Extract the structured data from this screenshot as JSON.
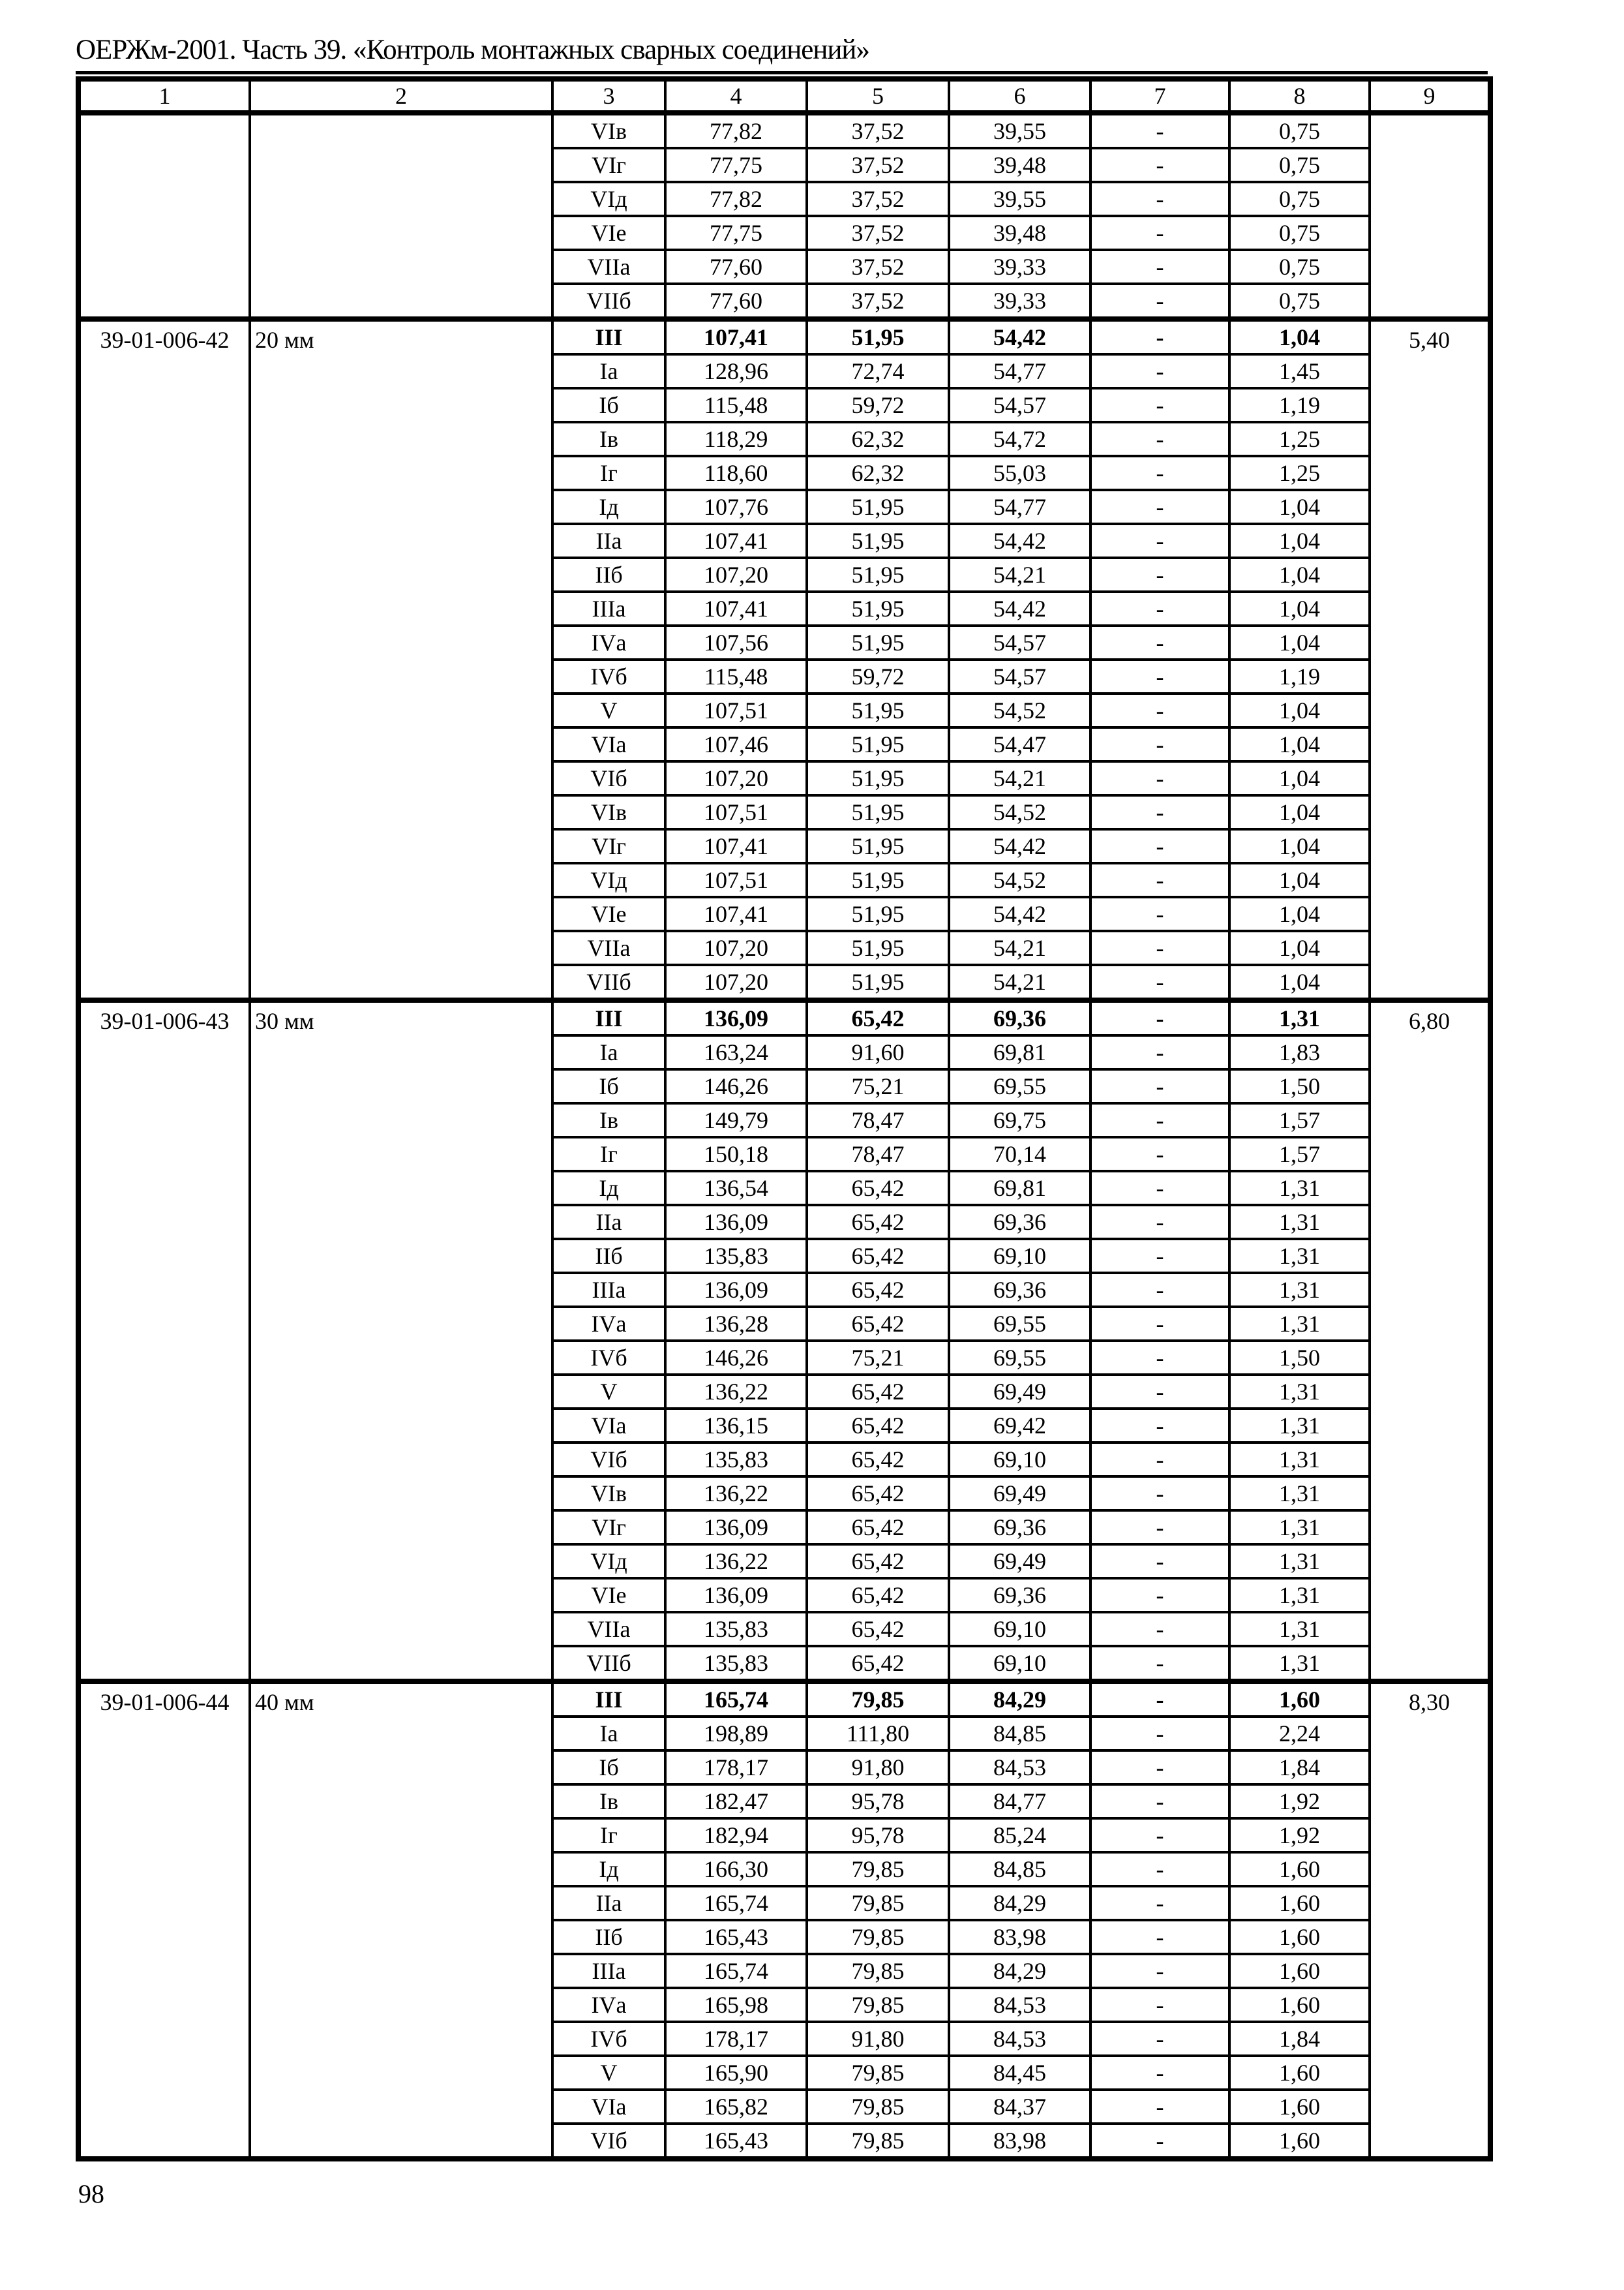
{
  "title": "ОЕРЖм-2001. Часть 39. «Контроль монтажных сварных соединений»",
  "page_number": "98",
  "table": {
    "header": [
      "1",
      "2",
      "3",
      "4",
      "5",
      "6",
      "7",
      "8",
      "9"
    ],
    "groups": [
      {
        "code": "",
        "size": "",
        "col9": "",
        "rows": [
          {
            "idx": "VIв",
            "v4": "77,82",
            "v5": "37,52",
            "v6": "39,55",
            "v7": "-",
            "v8": "0,75"
          },
          {
            "idx": "VIг",
            "v4": "77,75",
            "v5": "37,52",
            "v6": "39,48",
            "v7": "-",
            "v8": "0,75"
          },
          {
            "idx": "VIд",
            "v4": "77,82",
            "v5": "37,52",
            "v6": "39,55",
            "v7": "-",
            "v8": "0,75"
          },
          {
            "idx": "VIе",
            "v4": "77,75",
            "v5": "37,52",
            "v6": "39,48",
            "v7": "-",
            "v8": "0,75"
          },
          {
            "idx": "VIIа",
            "v4": "77,60",
            "v5": "37,52",
            "v6": "39,33",
            "v7": "-",
            "v8": "0,75"
          },
          {
            "idx": "VIIб",
            "v4": "77,60",
            "v5": "37,52",
            "v6": "39,33",
            "v7": "-",
            "v8": "0,75"
          }
        ]
      },
      {
        "code": "39-01-006-42",
        "size": "20 мм",
        "col9": "5,40",
        "rows": [
          {
            "idx": "III",
            "v4": "107,41",
            "v5": "51,95",
            "v6": "54,42",
            "v7": "-",
            "v8": "1,04",
            "bold": true
          },
          {
            "idx": "Iа",
            "v4": "128,96",
            "v5": "72,74",
            "v6": "54,77",
            "v7": "-",
            "v8": "1,45"
          },
          {
            "idx": "Iб",
            "v4": "115,48",
            "v5": "59,72",
            "v6": "54,57",
            "v7": "-",
            "v8": "1,19"
          },
          {
            "idx": "Iв",
            "v4": "118,29",
            "v5": "62,32",
            "v6": "54,72",
            "v7": "-",
            "v8": "1,25"
          },
          {
            "idx": "Iг",
            "v4": "118,60",
            "v5": "62,32",
            "v6": "55,03",
            "v7": "-",
            "v8": "1,25"
          },
          {
            "idx": "Iд",
            "v4": "107,76",
            "v5": "51,95",
            "v6": "54,77",
            "v7": "-",
            "v8": "1,04"
          },
          {
            "idx": "IIа",
            "v4": "107,41",
            "v5": "51,95",
            "v6": "54,42",
            "v7": "-",
            "v8": "1,04"
          },
          {
            "idx": "IIб",
            "v4": "107,20",
            "v5": "51,95",
            "v6": "54,21",
            "v7": "-",
            "v8": "1,04"
          },
          {
            "idx": "IIIа",
            "v4": "107,41",
            "v5": "51,95",
            "v6": "54,42",
            "v7": "-",
            "v8": "1,04"
          },
          {
            "idx": "IVа",
            "v4": "107,56",
            "v5": "51,95",
            "v6": "54,57",
            "v7": "-",
            "v8": "1,04"
          },
          {
            "idx": "IVб",
            "v4": "115,48",
            "v5": "59,72",
            "v6": "54,57",
            "v7": "-",
            "v8": "1,19"
          },
          {
            "idx": "V",
            "v4": "107,51",
            "v5": "51,95",
            "v6": "54,52",
            "v7": "-",
            "v8": "1,04"
          },
          {
            "idx": "VIа",
            "v4": "107,46",
            "v5": "51,95",
            "v6": "54,47",
            "v7": "-",
            "v8": "1,04"
          },
          {
            "idx": "VIб",
            "v4": "107,20",
            "v5": "51,95",
            "v6": "54,21",
            "v7": "-",
            "v8": "1,04"
          },
          {
            "idx": "VIв",
            "v4": "107,51",
            "v5": "51,95",
            "v6": "54,52",
            "v7": "-",
            "v8": "1,04"
          },
          {
            "idx": "VIг",
            "v4": "107,41",
            "v5": "51,95",
            "v6": "54,42",
            "v7": "-",
            "v8": "1,04"
          },
          {
            "idx": "VIд",
            "v4": "107,51",
            "v5": "51,95",
            "v6": "54,52",
            "v7": "-",
            "v8": "1,04"
          },
          {
            "idx": "VIе",
            "v4": "107,41",
            "v5": "51,95",
            "v6": "54,42",
            "v7": "-",
            "v8": "1,04"
          },
          {
            "idx": "VIIа",
            "v4": "107,20",
            "v5": "51,95",
            "v6": "54,21",
            "v7": "-",
            "v8": "1,04"
          },
          {
            "idx": "VIIб",
            "v4": "107,20",
            "v5": "51,95",
            "v6": "54,21",
            "v7": "-",
            "v8": "1,04"
          }
        ]
      },
      {
        "code": "39-01-006-43",
        "size": "30 мм",
        "col9": "6,80",
        "rows": [
          {
            "idx": "III",
            "v4": "136,09",
            "v5": "65,42",
            "v6": "69,36",
            "v7": "-",
            "v8": "1,31",
            "bold": true
          },
          {
            "idx": "Iа",
            "v4": "163,24",
            "v5": "91,60",
            "v6": "69,81",
            "v7": "-",
            "v8": "1,83"
          },
          {
            "idx": "Iб",
            "v4": "146,26",
            "v5": "75,21",
            "v6": "69,55",
            "v7": "-",
            "v8": "1,50"
          },
          {
            "idx": "Iв",
            "v4": "149,79",
            "v5": "78,47",
            "v6": "69,75",
            "v7": "-",
            "v8": "1,57"
          },
          {
            "idx": "Iг",
            "v4": "150,18",
            "v5": "78,47",
            "v6": "70,14",
            "v7": "-",
            "v8": "1,57"
          },
          {
            "idx": "Iд",
            "v4": "136,54",
            "v5": "65,42",
            "v6": "69,81",
            "v7": "-",
            "v8": "1,31"
          },
          {
            "idx": "IIа",
            "v4": "136,09",
            "v5": "65,42",
            "v6": "69,36",
            "v7": "-",
            "v8": "1,31"
          },
          {
            "idx": "IIб",
            "v4": "135,83",
            "v5": "65,42",
            "v6": "69,10",
            "v7": "-",
            "v8": "1,31"
          },
          {
            "idx": "IIIа",
            "v4": "136,09",
            "v5": "65,42",
            "v6": "69,36",
            "v7": "-",
            "v8": "1,31"
          },
          {
            "idx": "IVа",
            "v4": "136,28",
            "v5": "65,42",
            "v6": "69,55",
            "v7": "-",
            "v8": "1,31"
          },
          {
            "idx": "IVб",
            "v4": "146,26",
            "v5": "75,21",
            "v6": "69,55",
            "v7": "-",
            "v8": "1,50"
          },
          {
            "idx": "V",
            "v4": "136,22",
            "v5": "65,42",
            "v6": "69,49",
            "v7": "-",
            "v8": "1,31"
          },
          {
            "idx": "VIа",
            "v4": "136,15",
            "v5": "65,42",
            "v6": "69,42",
            "v7": "-",
            "v8": "1,31"
          },
          {
            "idx": "VIб",
            "v4": "135,83",
            "v5": "65,42",
            "v6": "69,10",
            "v7": "-",
            "v8": "1,31"
          },
          {
            "idx": "VIв",
            "v4": "136,22",
            "v5": "65,42",
            "v6": "69,49",
            "v7": "-",
            "v8": "1,31"
          },
          {
            "idx": "VIг",
            "v4": "136,09",
            "v5": "65,42",
            "v6": "69,36",
            "v7": "-",
            "v8": "1,31"
          },
          {
            "idx": "VIд",
            "v4": "136,22",
            "v5": "65,42",
            "v6": "69,49",
            "v7": "-",
            "v8": "1,31"
          },
          {
            "idx": "VIе",
            "v4": "136,09",
            "v5": "65,42",
            "v6": "69,36",
            "v7": "-",
            "v8": "1,31"
          },
          {
            "idx": "VIIа",
            "v4": "135,83",
            "v5": "65,42",
            "v6": "69,10",
            "v7": "-",
            "v8": "1,31"
          },
          {
            "idx": "VIIб",
            "v4": "135,83",
            "v5": "65,42",
            "v6": "69,10",
            "v7": "-",
            "v8": "1,31"
          }
        ]
      },
      {
        "code": "39-01-006-44",
        "size": "40 мм",
        "col9": "8,30",
        "rows": [
          {
            "idx": "III",
            "v4": "165,74",
            "v5": "79,85",
            "v6": "84,29",
            "v7": "-",
            "v8": "1,60",
            "bold": true
          },
          {
            "idx": "Iа",
            "v4": "198,89",
            "v5": "111,80",
            "v6": "84,85",
            "v7": "-",
            "v8": "2,24"
          },
          {
            "idx": "Iб",
            "v4": "178,17",
            "v5": "91,80",
            "v6": "84,53",
            "v7": "-",
            "v8": "1,84"
          },
          {
            "idx": "Iв",
            "v4": "182,47",
            "v5": "95,78",
            "v6": "84,77",
            "v7": "-",
            "v8": "1,92"
          },
          {
            "idx": "Iг",
            "v4": "182,94",
            "v5": "95,78",
            "v6": "85,24",
            "v7": "-",
            "v8": "1,92"
          },
          {
            "idx": "Iд",
            "v4": "166,30",
            "v5": "79,85",
            "v6": "84,85",
            "v7": "-",
            "v8": "1,60"
          },
          {
            "idx": "IIа",
            "v4": "165,74",
            "v5": "79,85",
            "v6": "84,29",
            "v7": "-",
            "v8": "1,60"
          },
          {
            "idx": "IIб",
            "v4": "165,43",
            "v5": "79,85",
            "v6": "83,98",
            "v7": "-",
            "v8": "1,60"
          },
          {
            "idx": "IIIа",
            "v4": "165,74",
            "v5": "79,85",
            "v6": "84,29",
            "v7": "-",
            "v8": "1,60"
          },
          {
            "idx": "IVа",
            "v4": "165,98",
            "v5": "79,85",
            "v6": "84,53",
            "v7": "-",
            "v8": "1,60"
          },
          {
            "idx": "IVб",
            "v4": "178,17",
            "v5": "91,80",
            "v6": "84,53",
            "v7": "-",
            "v8": "1,84"
          },
          {
            "idx": "V",
            "v4": "165,90",
            "v5": "79,85",
            "v6": "84,45",
            "v7": "-",
            "v8": "1,60"
          },
          {
            "idx": "VIа",
            "v4": "165,82",
            "v5": "79,85",
            "v6": "84,37",
            "v7": "-",
            "v8": "1,60"
          },
          {
            "idx": "VIб",
            "v4": "165,43",
            "v5": "79,85",
            "v6": "83,98",
            "v7": "-",
            "v8": "1,60"
          }
        ]
      }
    ]
  }
}
